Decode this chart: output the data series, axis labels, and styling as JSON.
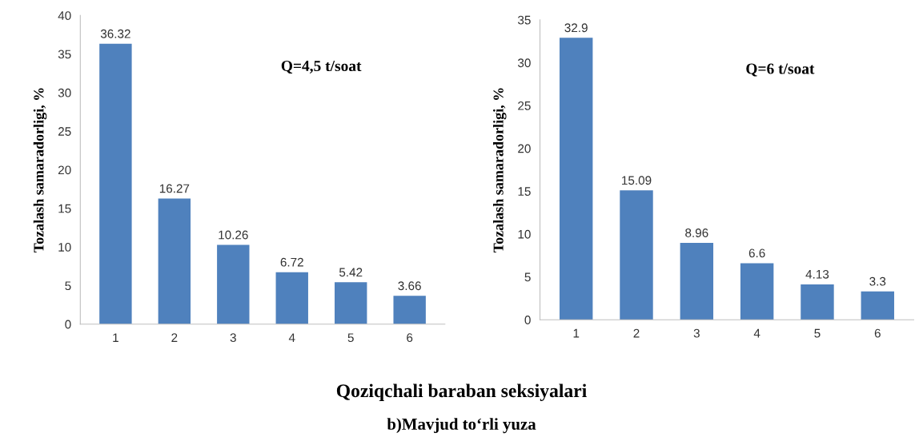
{
  "chart_data": [
    {
      "type": "bar",
      "title": "Q=4,5 t/soat",
      "ylabel": "Tozalash samaradorligi, %",
      "categories": [
        "1",
        "2",
        "3",
        "4",
        "5",
        "6"
      ],
      "values": [
        36.32,
        16.27,
        10.26,
        6.72,
        5.42,
        3.66
      ],
      "color": "#4f81bd",
      "data_labels": true,
      "ylim": [
        0,
        40
      ],
      "yticks": [
        0,
        5,
        10,
        15,
        20,
        25,
        30,
        35,
        40
      ],
      "grid": false,
      "annotations": [
        "Qoziqchali baraban seksiyalari",
        "b)Mavjud to‘rli yuza"
      ]
    },
    {
      "type": "bar",
      "title": "Q=6 t/soat",
      "ylabel": "Tozalash samaradorligi, %",
      "categories": [
        "1",
        "2",
        "3",
        "4",
        "5",
        "6"
      ],
      "values": [
        32.9,
        15.09,
        8.96,
        6.6,
        4.13,
        3.3
      ],
      "color": "#4f81bd",
      "data_labels": true,
      "ylim": [
        0,
        35
      ],
      "yticks": [
        0,
        5,
        10,
        15,
        20,
        25,
        30,
        35
      ],
      "grid": false
    }
  ]
}
